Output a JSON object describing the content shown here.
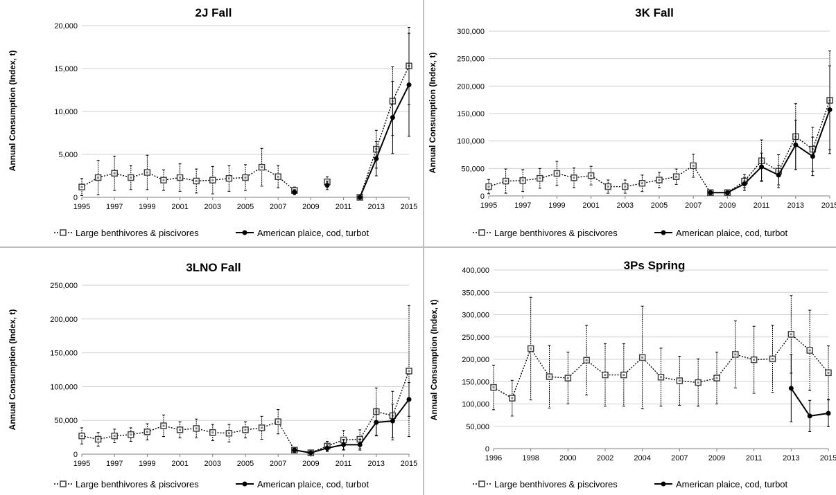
{
  "legend": {
    "large_label": "Large benthivores & piscivores",
    "small_label": "American plaice, cod, turbot"
  },
  "chart_data": [
    {
      "type": "line",
      "title": "2J Fall",
      "ylabel": "Annual Consumption (Index, t)",
      "xlim": [
        1995,
        2015
      ],
      "xticks": [
        1995,
        1997,
        1999,
        2001,
        2003,
        2005,
        2007,
        2009,
        2011,
        2013,
        2015
      ],
      "ylim": [
        0,
        20000
      ],
      "yticks": [
        0,
        5000,
        10000,
        15000,
        20000
      ],
      "grid": true,
      "legend_position": "bottom",
      "series": [
        {
          "name": "Large benthivores & piscivores",
          "style": "dotted-open-square",
          "x": [
            1995,
            1996,
            1997,
            1998,
            1999,
            2000,
            2001,
            2002,
            2003,
            2004,
            2005,
            2006,
            2007,
            2008,
            2010,
            2012,
            2013,
            2014,
            2015
          ],
          "y": [
            1200,
            2300,
            2800,
            2300,
            2900,
            2000,
            2300,
            1900,
            2000,
            2200,
            2300,
            3500,
            2400,
            800,
            1800,
            0,
            5600,
            11200,
            15300
          ],
          "err": [
            1000,
            2000,
            2000,
            1400,
            2000,
            1200,
            1600,
            1400,
            1600,
            1500,
            1500,
            2200,
            1300,
            400,
            600,
            0,
            2200,
            4000,
            4500
          ]
        },
        {
          "name": "American plaice, cod, turbot",
          "style": "solid-filled-circle",
          "x": [
            2008,
            2010,
            2012,
            2013,
            2014,
            2015
          ],
          "y": [
            600,
            1400,
            0,
            4500,
            9300,
            13100
          ],
          "err": [
            300,
            500,
            0,
            2000,
            4200,
            6000
          ]
        }
      ]
    },
    {
      "type": "line",
      "title": "3K Fall",
      "ylabel": "Annual Consumption (Index, t)",
      "xlim": [
        1995,
        2015
      ],
      "xticks": [
        1995,
        1997,
        1999,
        2001,
        2003,
        2005,
        2007,
        2009,
        2011,
        2013,
        2015
      ],
      "ylim": [
        0,
        300000
      ],
      "yticks": [
        0,
        50000,
        100000,
        150000,
        200000,
        250000,
        300000
      ],
      "grid": true,
      "legend_position": "bottom",
      "series": [
        {
          "name": "Large benthivores & piscivores",
          "style": "dotted-open-square",
          "x": [
            1995,
            1996,
            1997,
            1998,
            1999,
            2000,
            2001,
            2002,
            2003,
            2004,
            2005,
            2006,
            2007,
            2008,
            2009,
            2010,
            2011,
            2012,
            2013,
            2014,
            2015
          ],
          "y": [
            17000,
            27000,
            28000,
            32000,
            41000,
            33000,
            37000,
            17000,
            17000,
            23000,
            29000,
            35000,
            55000,
            6000,
            6000,
            27000,
            64000,
            45000,
            108000,
            85000,
            174000
          ],
          "err": [
            13000,
            22000,
            20000,
            18000,
            22000,
            18000,
            17000,
            12000,
            12000,
            15000,
            14000,
            14000,
            21000,
            3000,
            3000,
            12000,
            38000,
            30000,
            60000,
            40000,
            90000
          ]
        },
        {
          "name": "American plaice, cod, turbot",
          "style": "solid-filled-circle",
          "x": [
            2008,
            2009,
            2010,
            2011,
            2012,
            2013,
            2014,
            2015
          ],
          "y": [
            6000,
            6000,
            22000,
            53000,
            38000,
            93000,
            72000,
            157000
          ],
          "err": [
            3000,
            3000,
            12000,
            25000,
            18000,
            45000,
            35000,
            80000
          ]
        }
      ]
    },
    {
      "type": "line",
      "title": "3LNO Fall",
      "ylabel": "Annual Consumption (Index, t)",
      "xlim": [
        1995,
        2015
      ],
      "xticks": [
        1995,
        1997,
        1999,
        2001,
        2003,
        2005,
        2007,
        2009,
        2011,
        2013,
        2015
      ],
      "ylim": [
        0,
        250000
      ],
      "yticks": [
        0,
        50000,
        100000,
        150000,
        200000,
        250000
      ],
      "grid": true,
      "legend_position": "bottom",
      "series": [
        {
          "name": "Large benthivores & piscivores",
          "style": "dotted-open-square",
          "x": [
            1995,
            1996,
            1997,
            1998,
            1999,
            2000,
            2001,
            2002,
            2003,
            2004,
            2005,
            2006,
            2007,
            2008,
            2009,
            2010,
            2011,
            2012,
            2013,
            2014,
            2015
          ],
          "y": [
            27000,
            22000,
            27000,
            29000,
            33000,
            42000,
            36000,
            38000,
            32000,
            31000,
            36000,
            39000,
            48000,
            6000,
            2000,
            12000,
            21000,
            22000,
            63000,
            57000,
            123000
          ],
          "err": [
            12000,
            10000,
            10000,
            10000,
            12000,
            16000,
            12000,
            14000,
            12000,
            13000,
            12000,
            17000,
            18000,
            3000,
            1000,
            7000,
            14000,
            14000,
            35000,
            36000,
            97000
          ]
        },
        {
          "name": "American plaice, cod, turbot",
          "style": "solid-filled-circle",
          "x": [
            2008,
            2009,
            2010,
            2011,
            2012,
            2013,
            2014,
            2015
          ],
          "y": [
            6000,
            2000,
            9000,
            14000,
            14000,
            47000,
            49000,
            81000
          ],
          "err": [
            3000,
            1000,
            5000,
            8000,
            8000,
            20000,
            25000,
            25000
          ]
        }
      ]
    },
    {
      "type": "line",
      "title": "3Ps Spring",
      "ylabel": "Annual Consumption (Index, t)",
      "categories": [
        "1996",
        "1997",
        "1998",
        "1999",
        "2000",
        "2001",
        "2002",
        "2003",
        "2004",
        "2005",
        "2007",
        "2008",
        "2009",
        "2010",
        "2011",
        "2012",
        "2013",
        "2014",
        "2015"
      ],
      "xticks": [
        "1996",
        "1998",
        "2000",
        "2002",
        "2004",
        "2007",
        "2009",
        "2011",
        "2013",
        "2015"
      ],
      "ylim": [
        0,
        400000
      ],
      "yticks": [
        0,
        50000,
        100000,
        150000,
        200000,
        250000,
        300000,
        350000,
        400000
      ],
      "grid": true,
      "legend_position": "bottom",
      "series": [
        {
          "name": "Large benthivores & piscivores",
          "style": "dotted-open-square",
          "values": [
            137000,
            113000,
            224000,
            161000,
            158000,
            198000,
            165000,
            165000,
            204000,
            160000,
            152000,
            148000,
            158000,
            211000,
            199000,
            201000,
            256000,
            220000,
            170000
          ],
          "err": [
            50000,
            40000,
            115000,
            70000,
            58000,
            78000,
            70000,
            70000,
            115000,
            65000,
            55000,
            53000,
            58000,
            75000,
            75000,
            75000,
            87000,
            90000,
            60000
          ]
        },
        {
          "name": "American plaice, cod, turbot",
          "style": "solid-filled-circle",
          "values": [
            null,
            null,
            null,
            null,
            null,
            null,
            null,
            null,
            null,
            null,
            null,
            null,
            null,
            null,
            null,
            null,
            135000,
            73000,
            79000
          ],
          "err": [
            null,
            null,
            null,
            null,
            null,
            null,
            null,
            null,
            null,
            null,
            null,
            null,
            null,
            null,
            null,
            null,
            75000,
            35000,
            30000
          ]
        }
      ]
    }
  ]
}
